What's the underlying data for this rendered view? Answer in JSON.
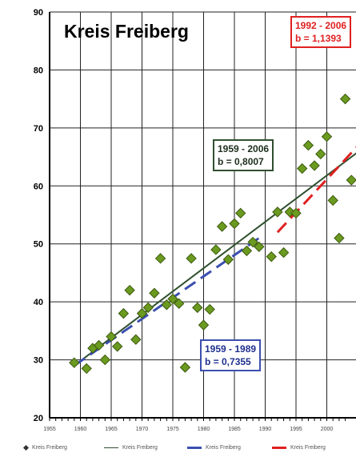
{
  "chart_data": {
    "type": "scatter",
    "title": "Kreis Freiberg",
    "xlim": [
      1955,
      2005
    ],
    "ylim": [
      20,
      90
    ],
    "x_ticks": [
      1955,
      1960,
      1965,
      1970,
      1975,
      1980,
      1985,
      1990,
      1995,
      2000
    ],
    "y_ticks": [
      20,
      30,
      40,
      50,
      60,
      70,
      80,
      90
    ],
    "grid": true,
    "points": {
      "name": "Kreis Freiberg",
      "color": "#6a9a1f",
      "x": [
        1959,
        1961,
        1962,
        1963,
        1964,
        1965,
        1966,
        1967,
        1968,
        1969,
        1970,
        1971,
        1972,
        1973,
        1974,
        1975,
        1976,
        1977,
        1978,
        1979,
        1980,
        1981,
        1982,
        1983,
        1984,
        1985,
        1986,
        1987,
        1988,
        1989,
        1991,
        1992,
        1993,
        1994,
        1995,
        1996,
        1997,
        1998,
        1999,
        2000,
        2001,
        2002,
        2003,
        2004
      ],
      "y": [
        29.5,
        28.5,
        32.0,
        32.5,
        30.0,
        34.0,
        32.3,
        38.0,
        42.0,
        33.5,
        38.0,
        39.0,
        41.5,
        47.5,
        39.5,
        40.5,
        39.7,
        28.7,
        47.5,
        39.0,
        36.0,
        38.7,
        49.0,
        53.0,
        47.3,
        53.5,
        55.3,
        48.8,
        50.3,
        49.5,
        47.8,
        55.5,
        48.5,
        55.5,
        55.3,
        63.0,
        67.0,
        63.5,
        65.5,
        68.5,
        57.5,
        51.0,
        75.0,
        61.0
      ]
    },
    "trend_lines": [
      {
        "name": "Kreis Freiberg",
        "period": "1959 - 2006",
        "slope_label": "b = 0,8007",
        "color": "#2f4f2f",
        "style": "solid",
        "x": [
          1959,
          2006
        ],
        "y": [
          29.0,
          66.6
        ]
      },
      {
        "name": "Kreis Freiberg",
        "period": "1959 - 1989",
        "slope_label": "b = 0,7355",
        "color": "#3b4fb0",
        "style": "dashed",
        "x": [
          1959,
          1989
        ],
        "y": [
          29.0,
          51.0
        ]
      },
      {
        "name": "Kreis Freiberg",
        "period": "1992 - 2006",
        "slope_label": "b = 1,1393",
        "color": "#e02020",
        "style": "dashed",
        "x": [
          1992,
          2006
        ],
        "y": [
          52.0,
          68.0
        ]
      }
    ],
    "legend": [
      {
        "label": "Kreis Freiberg",
        "kind": "marker",
        "color": "#6a9a1f"
      },
      {
        "label": "Kreis Freiberg",
        "kind": "line",
        "color": "#2f4f2f"
      },
      {
        "label": "Kreis Freiberg",
        "kind": "dash",
        "color": "#3b4fb0"
      },
      {
        "label": "Kreis Freiberg",
        "kind": "dash",
        "color": "#e02020"
      }
    ]
  }
}
